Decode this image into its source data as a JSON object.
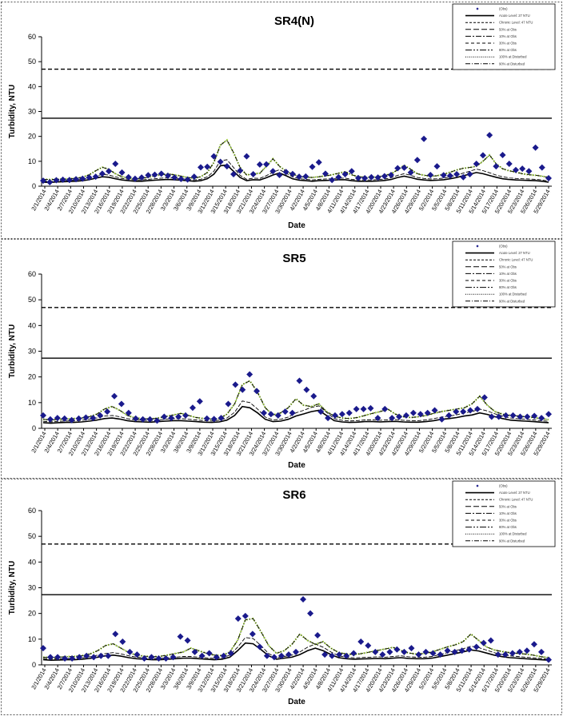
{
  "chart_data": [
    {
      "type": "line",
      "title": "SR4(N)",
      "xlabel": "Date",
      "ylabel": "Turbidity, NTU",
      "ylim": [
        0,
        60
      ],
      "yticks": [
        0,
        10,
        20,
        30,
        40,
        50,
        60
      ],
      "x_tick_labels": [
        "2/1/2014",
        "2/4/2014",
        "2/7/2014",
        "2/10/2014",
        "2/13/2014",
        "2/16/2014",
        "2/19/2014",
        "2/22/2014",
        "2/25/2014",
        "2/28/2014",
        "3/3/2014",
        "3/6/2014",
        "3/9/2014",
        "3/12/2014",
        "3/15/2014",
        "3/18/2014",
        "3/21/2014",
        "3/24/2014",
        "3/27/2014",
        "3/30/2014",
        "4/2/2014",
        "4/5/2014",
        "4/8/2014",
        "4/11/2014",
        "4/14/2014",
        "4/17/2014",
        "4/20/2014",
        "4/23/2014",
        "4/26/2014",
        "4/29/2014",
        "5/2/2014",
        "5/5/2014",
        "5/8/2014",
        "5/11/2014",
        "5/14/2014",
        "5/17/2014",
        "5/20/2014",
        "5/23/2014",
        "5/26/2014",
        "5/29/2014"
      ],
      "legend": [
        "(Obs)",
        "Acute Level: 27 NTU",
        "Chronic Level: 47 NTU",
        "50% at Obs",
        "10% at Obs",
        "30% at Obs",
        "80% at Obs",
        "100% at Disturbed",
        "90% at Disturbed"
      ],
      "legend_placement": "top-right",
      "reference_lines": [
        27.3,
        47
      ],
      "series": [
        {
          "values": [
            2.2,
            1.6,
            2.4,
            2.6,
            2.5,
            2.8,
            3.0,
            3.5,
            3.8,
            5.0,
            6.0,
            9.0,
            5.5,
            3.6,
            3.0,
            3.5,
            4.4,
            4.6,
            5.0,
            4.2,
            3.5,
            2.9,
            2.7,
            3.8,
            7.6,
            7.8,
            12.0,
            9.8,
            8.0,
            4.8,
            6.2,
            12.0,
            4.8,
            8.7,
            8.8,
            6.0,
            4.5,
            5.7,
            4.9,
            3.8,
            3.9,
            7.8,
            9.6,
            5.0,
            2.5,
            3.6,
            4.8,
            6.0,
            3.3,
            3.2,
            3.6,
            3.5,
            4.0,
            4.5,
            7.2,
            7.4,
            5.5,
            10.5,
            19.0,
            4.5,
            8.0,
            4.4,
            4.2,
            4.8,
            3.6,
            4.8,
            9.0,
            12.4,
            20.5,
            8.0,
            12.5,
            9.0,
            6.5,
            7.0,
            6.0,
            15.5,
            7.5,
            3.2
          ]
        },
        {
          "values": [
            1.6,
            1.5,
            1.7,
            1.8,
            1.9,
            2.0,
            2.2,
            2.6,
            3.2,
            3.8,
            3.6,
            3.0,
            2.5,
            2.2,
            2.0,
            2.0,
            2.2,
            2.4,
            2.6,
            2.7,
            2.6,
            2.4,
            2.2,
            2.0,
            2.2,
            3.0,
            4.8,
            8.2,
            8.5,
            6.0,
            3.5,
            2.2,
            2.6,
            2.5,
            3.4,
            4.5,
            5.3,
            4.2,
            3.0,
            2.4,
            2.2,
            2.0,
            2.2,
            2.3,
            2.4,
            2.6,
            2.6,
            2.2,
            2.0,
            2.0,
            2.0,
            2.1,
            2.3,
            2.7,
            3.5,
            4.0,
            3.5,
            2.8,
            2.5,
            2.3,
            2.4,
            2.6,
            3.0,
            3.5,
            4.2,
            4.8,
            5.5,
            5.0,
            4.3,
            3.6,
            3.0,
            2.7,
            2.5,
            2.4,
            2.3,
            2.2,
            2.0,
            1.6
          ]
        },
        {
          "values": [
            2.8,
            2.7,
            2.8,
            2.9,
            3.0,
            3.2,
            3.6,
            4.6,
            6.2,
            7.6,
            6.8,
            5.0,
            3.8,
            3.2,
            3.0,
            3.1,
            3.6,
            4.2,
            4.6,
            4.9,
            4.6,
            4.0,
            3.5,
            3.2,
            3.8,
            5.5,
            9.5,
            16.5,
            18.5,
            13.5,
            7.5,
            4.5,
            5.0,
            5.2,
            8.0,
            11.0,
            8.0,
            6.0,
            4.8,
            4.0,
            3.6,
            3.5,
            3.8,
            4.1,
            4.6,
            5.2,
            5.8,
            4.6,
            3.8,
            3.6,
            3.6,
            3.8,
            4.2,
            5.0,
            6.5,
            8.4,
            6.8,
            5.0,
            4.4,
            4.0,
            4.2,
            4.8,
            5.6,
            6.5,
            7.2,
            7.5,
            8.0,
            10.0,
            12.5,
            9.0,
            7.0,
            6.2,
            5.6,
            5.0,
            4.6,
            4.4,
            4.0,
            3.5
          ]
        }
      ]
    },
    {
      "type": "line",
      "title": "SR5",
      "xlabel": "Date",
      "ylabel": "Turbidity, NTU",
      "ylim": [
        0,
        60
      ],
      "yticks": [
        0,
        10,
        20,
        30,
        40,
        50,
        60
      ],
      "x_tick_labels": [
        "2/1/2014",
        "2/4/2014",
        "2/7/2014",
        "2/10/2014",
        "2/13/2014",
        "2/16/2014",
        "2/19/2014",
        "2/22/2014",
        "2/25/2014",
        "2/28/2014",
        "3/3/2014",
        "3/6/2014",
        "3/9/2014",
        "3/12/2014",
        "3/15/2014",
        "3/18/2014",
        "3/21/2014",
        "3/24/2014",
        "3/27/2014",
        "3/30/2014",
        "4/2/2014",
        "4/5/2014",
        "4/8/2014",
        "4/11/2014",
        "4/14/2014",
        "4/17/2014",
        "4/20/2014",
        "4/23/2014",
        "4/26/2014",
        "4/29/2014",
        "5/2/2014",
        "5/5/2014",
        "5/8/2014",
        "5/11/2014",
        "5/14/2014",
        "5/17/2014",
        "5/20/2014",
        "5/23/2014",
        "5/26/2014",
        "5/29/2014"
      ],
      "legend": [
        "(Obs)",
        "Acute Level: 27 NTU",
        "Chronic Level: 47 NTU",
        "50% at Obs",
        "10% at Obs",
        "30% at Obs",
        "80% at Obs",
        "100% at Disturbed",
        "90% at Disturbed"
      ],
      "legend_placement": "top-right",
      "reference_lines": [
        27.3,
        47
      ],
      "series": [
        {
          "values": [
            5.0,
            3.5,
            4.0,
            3.8,
            3.2,
            3.8,
            4.2,
            4.0,
            5.0,
            6.5,
            12.5,
            9.5,
            6.0,
            3.8,
            3.5,
            3.5,
            3.0,
            4.5,
            4.0,
            4.5,
            5.0,
            8.0,
            10.5,
            3.8,
            3.6,
            4.0,
            9.5,
            17.0,
            15.0,
            21.0,
            14.5,
            6.0,
            5.5,
            5.0,
            6.5,
            6.0,
            18.5,
            15.0,
            12.5,
            6.5,
            4.0,
            5.0,
            5.5,
            6.0,
            7.5,
            7.5,
            7.8,
            4.0,
            7.5,
            4.0,
            4.5,
            5.0,
            6.0,
            5.5,
            6.0,
            7.0,
            3.5,
            5.0,
            6.5,
            6.5,
            7.0,
            7.5,
            12.0,
            4.5,
            4.5,
            5.0,
            5.0,
            4.5,
            4.5,
            4.8,
            4.0,
            5.5
          ]
        },
        {
          "values": [
            2.2,
            2.0,
            2.2,
            2.3,
            2.3,
            2.5,
            2.8,
            3.2,
            3.8,
            4.0,
            3.6,
            3.0,
            2.6,
            2.5,
            2.4,
            2.6,
            2.8,
            3.0,
            3.0,
            2.8,
            2.6,
            2.4,
            2.3,
            2.5,
            3.2,
            5.0,
            8.5,
            8.0,
            6.0,
            3.5,
            2.6,
            2.8,
            3.5,
            4.8,
            5.6,
            6.5,
            7.0,
            5.0,
            3.0,
            2.5,
            2.3,
            2.4,
            2.6,
            2.6,
            2.5,
            2.6,
            2.7,
            2.5,
            2.4,
            2.4,
            2.6,
            3.0,
            3.5,
            3.8,
            4.2,
            4.8,
            5.2,
            6.0,
            5.4,
            4.5,
            3.8,
            3.2,
            3.0,
            2.8,
            2.6,
            2.4,
            2.2
          ]
        },
        {
          "values": [
            3.5,
            3.2,
            3.5,
            3.6,
            3.8,
            4.0,
            4.5,
            5.5,
            7.5,
            8.5,
            7.0,
            5.0,
            4.0,
            3.8,
            3.6,
            4.0,
            4.6,
            5.2,
            5.8,
            5.0,
            4.2,
            3.8,
            3.5,
            3.8,
            5.5,
            9.5,
            17.0,
            18.5,
            14.0,
            8.0,
            5.2,
            6.0,
            8.0,
            11.5,
            9.0,
            8.5,
            9.5,
            6.5,
            4.8,
            4.0,
            3.8,
            4.2,
            5.0,
            5.8,
            6.5,
            7.5,
            5.5,
            4.5,
            4.2,
            4.5,
            5.0,
            5.8,
            6.5,
            7.0,
            7.5,
            8.0,
            9.5,
            12.5,
            9.0,
            6.5,
            5.5,
            5.0,
            4.8,
            4.5,
            4.2,
            3.8,
            3.4
          ]
        }
      ]
    },
    {
      "type": "line",
      "title": "SR6",
      "xlabel": "Date",
      "ylabel": "Turbidity, NTU",
      "ylim": [
        0,
        60
      ],
      "yticks": [
        0,
        10,
        20,
        30,
        40,
        50,
        60
      ],
      "x_tick_labels": [
        "2/1/2014",
        "2/4/2014",
        "2/7/2014",
        "2/10/2014",
        "2/13/2014",
        "2/16/2014",
        "2/19/2014",
        "2/22/2014",
        "2/25/2014",
        "2/28/2014",
        "3/3/2014",
        "3/6/2014",
        "3/9/2014",
        "3/12/2014",
        "3/15/2014",
        "3/18/2014",
        "3/21/2014",
        "3/24/2014",
        "3/27/2014",
        "3/30/2014",
        "4/2/2014",
        "4/5/2014",
        "4/8/2014",
        "4/11/2014",
        "4/14/2014",
        "4/17/2014",
        "4/20/2014",
        "4/23/2014",
        "4/26/2014",
        "4/29/2014",
        "5/2/2014",
        "5/5/2014",
        "5/8/2014",
        "5/11/2014",
        "5/14/2014",
        "5/17/2014",
        "5/20/2014",
        "5/23/2014",
        "5/26/2014",
        "5/29/2014"
      ],
      "legend": [
        "(Obs)",
        "Acute Level: 27 NTU",
        "Chronic Level: 47 NTU",
        "50% at Obs",
        "10% at Obs",
        "30% at Obs",
        "80% at Obs",
        "100% at Disturbed",
        "90% at Disturbed"
      ],
      "legend_placement": "top-right",
      "reference_lines": [
        27.3,
        47
      ],
      "series": [
        {
          "values": [
            6.5,
            3.0,
            3.0,
            2.5,
            2.5,
            3.0,
            3.5,
            3.0,
            3.5,
            3.5,
            12.0,
            9.0,
            5.0,
            4.0,
            2.5,
            3.0,
            2.5,
            2.5,
            3.0,
            11.0,
            9.5,
            5.0,
            3.5,
            4.5,
            3.0,
            3.5,
            4.5,
            18.0,
            19.0,
            12.0,
            7.0,
            3.5,
            3.0,
            3.5,
            4.0,
            5.0,
            25.5,
            20.0,
            11.5,
            4.0,
            3.5,
            4.0,
            3.5,
            4.5,
            9.0,
            7.5,
            5.0,
            4.0,
            5.0,
            6.0,
            5.0,
            6.5,
            4.0,
            5.0,
            4.5,
            4.0,
            5.5,
            5.0,
            5.5,
            6.0,
            7.0,
            8.5,
            9.5,
            4.0,
            4.0,
            4.5,
            5.0,
            5.5,
            8.0,
            5.0,
            2.0
          ]
        },
        {
          "values": [
            2.0,
            1.8,
            1.9,
            2.0,
            2.0,
            2.2,
            2.5,
            3.0,
            3.5,
            3.8,
            3.4,
            2.8,
            2.4,
            2.2,
            2.0,
            2.0,
            2.2,
            2.4,
            2.6,
            2.6,
            2.4,
            2.2,
            2.0,
            2.2,
            3.0,
            5.5,
            8.5,
            8.2,
            6.0,
            3.5,
            2.2,
            2.6,
            3.0,
            4.0,
            5.5,
            6.5,
            5.5,
            4.0,
            2.8,
            2.4,
            2.2,
            2.3,
            2.4,
            2.5,
            2.4,
            2.6,
            2.8,
            2.5,
            2.4,
            2.4,
            2.6,
            3.2,
            3.8,
            4.4,
            5.0,
            5.8,
            5.4,
            4.6,
            3.8,
            3.2,
            2.8,
            2.6,
            2.4,
            2.2,
            2.0,
            1.8
          ]
        },
        {
          "values": [
            3.0,
            2.8,
            3.0,
            3.2,
            3.3,
            3.6,
            4.2,
            5.5,
            7.5,
            8.2,
            6.5,
            4.8,
            3.8,
            3.4,
            3.2,
            3.3,
            3.8,
            4.4,
            5.0,
            6.5,
            5.5,
            4.5,
            3.8,
            3.6,
            5.0,
            9.5,
            17.5,
            18.0,
            13.0,
            7.5,
            4.5,
            5.5,
            8.0,
            12.0,
            9.5,
            8.0,
            9.0,
            6.5,
            4.8,
            4.2,
            4.0,
            4.4,
            5.0,
            5.6,
            6.2,
            6.8,
            5.6,
            4.6,
            4.2,
            4.4,
            5.0,
            6.0,
            7.0,
            7.8,
            9.0,
            12.0,
            9.5,
            7.0,
            5.8,
            5.2,
            4.8,
            4.5,
            4.2,
            3.8,
            3.2,
            2.8
          ]
        }
      ]
    }
  ]
}
